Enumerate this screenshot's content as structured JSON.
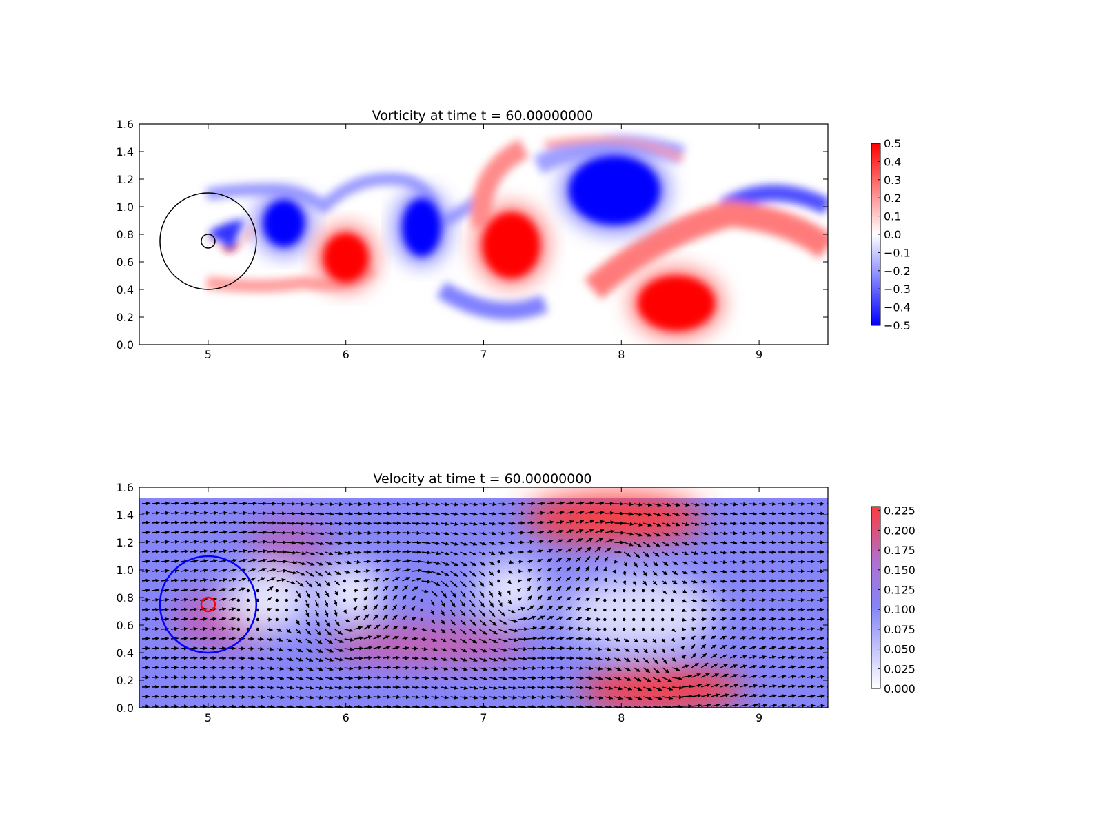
{
  "chart_data": [
    {
      "type": "heatmap",
      "title": "Vorticity at time t =    60.00000000",
      "xlim": [
        4.5,
        9.5
      ],
      "ylim": [
        0.0,
        1.6
      ],
      "x_ticks": [
        "5",
        "6",
        "7",
        "8",
        "9"
      ],
      "y_ticks": [
        "0.0",
        "0.2",
        "0.4",
        "0.6",
        "0.8",
        "1.0",
        "1.2",
        "1.4",
        "1.6"
      ],
      "colorbar": {
        "min": -0.5,
        "max": 0.5,
        "ticks": [
          "0.5",
          "0.4",
          "0.3",
          "0.2",
          "0.1",
          "0.0",
          "−0.1",
          "−0.2",
          "−0.3",
          "−0.4",
          "−0.5"
        ],
        "colors": [
          "#0000ff",
          "#ffffff",
          "#ff0000"
        ]
      },
      "vortices": [
        {
          "x": 5.55,
          "y": 0.88,
          "sign": -1
        },
        {
          "x": 6.0,
          "y": 0.63,
          "sign": 1
        },
        {
          "x": 6.55,
          "y": 0.85,
          "sign": -1
        },
        {
          "x": 7.2,
          "y": 0.72,
          "sign": 1
        },
        {
          "x": 7.95,
          "y": 1.12,
          "sign": -1
        },
        {
          "x": 8.4,
          "y": 0.3,
          "sign": 1
        }
      ],
      "circles": [
        {
          "cx": 5.0,
          "cy": 0.75,
          "r": 0.35,
          "color": "#000000"
        },
        {
          "cx": 5.0,
          "cy": 0.75,
          "r": 0.05,
          "color": "#000000"
        }
      ]
    },
    {
      "type": "heatmap",
      "title": "Velocity at time t =    60.00000000",
      "xlim": [
        4.5,
        9.5
      ],
      "ylim": [
        0.0,
        1.6
      ],
      "x_ticks": [
        "5",
        "6",
        "7",
        "8",
        "9"
      ],
      "y_ticks": [
        "0.0",
        "0.2",
        "0.4",
        "0.6",
        "0.8",
        "1.0",
        "1.2",
        "1.4",
        "1.6"
      ],
      "colorbar": {
        "min": 0.0,
        "max": 0.23,
        "ticks": [
          "0.225",
          "0.200",
          "0.175",
          "0.150",
          "0.125",
          "0.100",
          "0.075",
          "0.050",
          "0.025",
          "0.000"
        ],
        "colors": [
          "#ffffff",
          "#8080f8",
          "#ff3030"
        ]
      },
      "circles": [
        {
          "cx": 5.0,
          "cy": 0.75,
          "r": 0.35,
          "color": "#0000ff"
        },
        {
          "cx": 5.0,
          "cy": 0.75,
          "r": 0.05,
          "color": "#ff0000"
        }
      ]
    }
  ]
}
